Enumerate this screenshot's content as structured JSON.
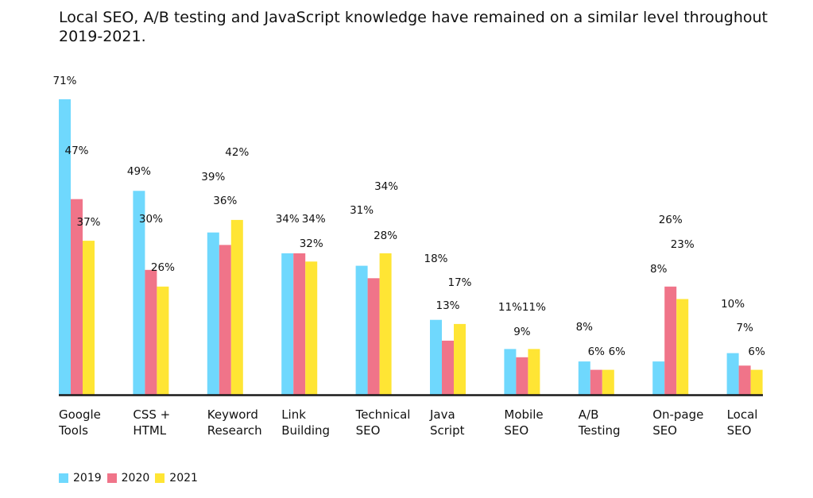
{
  "chart_data": {
    "type": "bar",
    "title": "Local SEO, A/B testing and JavaScript knowledge have remained on a similar level throughout 2019-2021.",
    "xlabel": "",
    "ylabel": "",
    "ylim": [
      0,
      71
    ],
    "grid": false,
    "legend_position": "bottom-left",
    "categories": [
      "Google\nTools",
      "CSS +\nHTML",
      "Keyword\nResearch",
      "Link\nBuilding",
      "Technical\nSEO",
      "Java\nScript",
      "Mobile\nSEO",
      "A/B\nTesting",
      "On-page\nSEO",
      "Local\nSEO"
    ],
    "series": [
      {
        "name": "2019",
        "color": "#6fd8fd",
        "values": [
          71,
          49,
          39,
          34,
          31,
          18,
          11,
          8,
          8,
          10
        ],
        "labels": [
          "71%",
          "49%",
          "39%",
          "34%",
          "31%",
          "18%",
          "11%",
          "8%",
          "8%",
          "10%"
        ]
      },
      {
        "name": "2020",
        "color": "#f07489",
        "values": [
          47,
          30,
          36,
          34,
          28,
          13,
          9,
          6,
          26,
          7
        ],
        "labels": [
          "47%",
          "30%",
          "36%",
          "34%",
          "28%",
          "13%",
          "9%",
          "6%",
          "26%",
          "7%"
        ]
      },
      {
        "name": "2021",
        "color": "#ffe534",
        "values": [
          37,
          26,
          42,
          32,
          34,
          17,
          11,
          6,
          23,
          6
        ],
        "labels": [
          "37%",
          "26%",
          "42%",
          "32%",
          "34%",
          "17%",
          "11%",
          "6%",
          "23%",
          "6%"
        ]
      }
    ]
  }
}
